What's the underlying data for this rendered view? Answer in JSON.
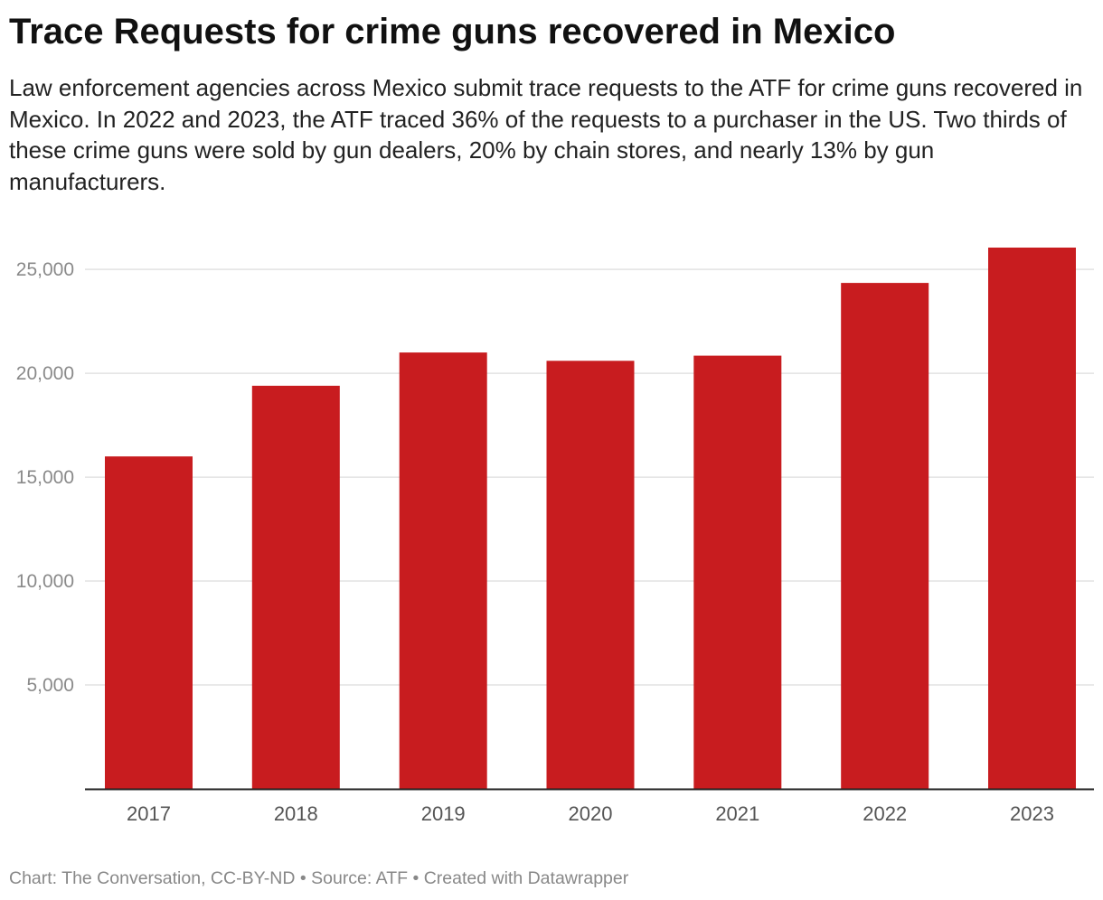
{
  "chart_data": {
    "type": "bar",
    "title": "Trace Requests for crime guns recovered in Mexico",
    "subtitle": "Law enforcement agencies across Mexico submit trace requests to the ATF for crime guns recovered in Mexico. In 2022 and 2023, the ATF traced 36% of the requests to a purchaser in the US. Two thirds of these crime guns were sold by gun dealers,  20% by chain stores, and nearly 13% by gun manufacturers.",
    "categories": [
      "2017",
      "2018",
      "2019",
      "2020",
      "2021",
      "2022",
      "2023"
    ],
    "values": [
      16000,
      19400,
      21000,
      20600,
      20850,
      24350,
      26050
    ],
    "xlabel": "",
    "ylabel": "",
    "ylim": [
      0,
      26050
    ],
    "yticks": [
      5000,
      10000,
      15000,
      20000,
      25000
    ],
    "ytick_labels": [
      "5,000",
      "10,000",
      "15,000",
      "20,000",
      "25,000"
    ],
    "grid": true,
    "legend": "none",
    "bar_color": "#c81c1f"
  },
  "footer": {
    "text": "Chart: The Conversation, CC-BY-ND • Source: ATF • Created with Datawrapper"
  }
}
